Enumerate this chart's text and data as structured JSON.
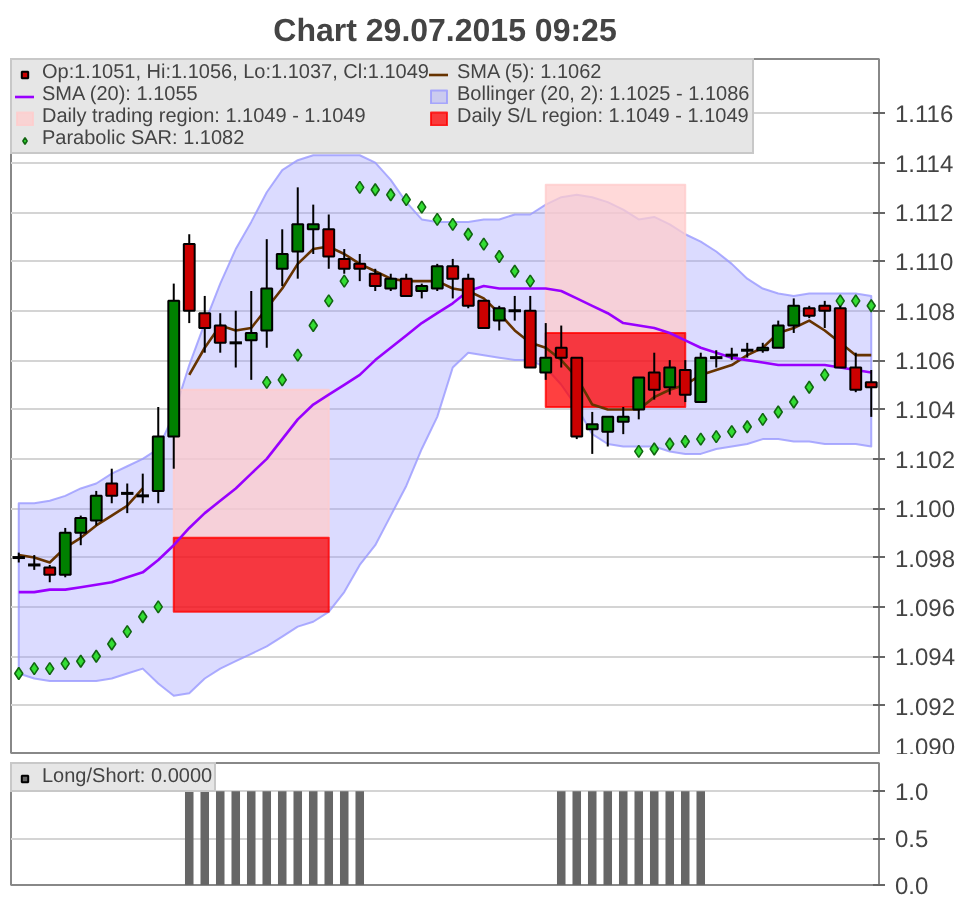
{
  "chart_data": [
    {
      "type": "candlestick",
      "title": "Chart 29.07.2015 09:25",
      "categories": [
        null,
        null,
        null,
        null,
        null,
        null,
        null,
        null,
        null,
        null,
        null,
        null,
        null,
        null,
        null,
        null,
        null,
        null,
        null,
        null,
        null,
        null,
        null,
        null,
        null,
        null,
        null,
        null,
        null,
        null,
        null,
        null,
        null,
        null,
        null,
        null,
        null,
        null,
        null,
        null,
        null,
        null,
        null,
        null,
        null,
        null,
        null,
        null,
        null,
        null,
        null,
        null,
        null,
        null,
        null,
        null
      ],
      "ylim": [
        1.09,
        1.1182
      ],
      "yticks": [
        {
          "value": 1.09,
          "label": "1.090"
        },
        {
          "value": 1.092,
          "label": "1.092"
        },
        {
          "value": 1.094,
          "label": "1.094"
        },
        {
          "value": 1.096,
          "label": "1.096"
        },
        {
          "value": 1.098,
          "label": "1.098"
        },
        {
          "value": 1.1,
          "label": "1.100"
        },
        {
          "value": 1.102,
          "label": "1.102"
        },
        {
          "value": 1.104,
          "label": "1.104"
        },
        {
          "value": 1.106,
          "label": "1.106"
        },
        {
          "value": 1.108,
          "label": "1.108"
        },
        {
          "value": 1.11,
          "label": "1.110"
        },
        {
          "value": 1.112,
          "label": "1.112"
        },
        {
          "value": 1.114,
          "label": "1.114"
        },
        {
          "value": 1.116,
          "label": "1.116"
        }
      ],
      "grid": "y",
      "legend": "top",
      "tick_labels": "y",
      "series": [
        {
          "type": "area",
          "name": "Bollinger (20, 2): 1.1025 - 1.1086",
          "color": "#9999ff",
          "values": [
            null,
            null,
            null,
            null,
            null,
            null,
            null,
            null,
            null,
            null,
            null,
            null,
            null,
            null,
            null,
            null,
            null,
            null,
            null,
            null,
            null,
            null,
            null,
            null,
            null,
            null,
            null,
            null,
            null,
            null,
            null,
            null,
            null,
            null,
            null,
            null,
            null,
            null,
            null,
            null,
            null,
            null,
            null,
            null,
            null,
            null,
            null,
            null,
            null,
            null,
            null,
            null,
            null,
            null,
            null,
            null
          ],
          "upper": [
            1.1002,
            1.1002,
            1.1003,
            1.1005,
            1.1008,
            1.101,
            1.1014,
            1.1017,
            1.102,
            1.1024,
            1.1038,
            1.1058,
            1.1075,
            1.1091,
            1.1105,
            1.1116,
            1.1128,
            1.1137,
            1.1141,
            1.1143,
            1.1143,
            1.1143,
            1.1143,
            1.114,
            1.1133,
            1.1124,
            1.1117,
            1.1116,
            1.1116,
            1.1116,
            1.1117,
            1.1117,
            1.1119,
            1.1119,
            1.1123,
            1.1126,
            1.1127,
            1.1126,
            1.1124,
            1.1121,
            1.1117,
            1.1118,
            1.1115,
            1.1111,
            1.1108,
            1.1104,
            1.1099,
            1.1093,
            1.1089,
            1.1087,
            1.1086,
            1.1087,
            1.1087,
            1.1087,
            1.1087,
            1.1086
          ],
          "lower": [
            1.0933,
            1.0931,
            1.093,
            1.093,
            1.093,
            1.093,
            1.0931,
            1.0933,
            1.0935,
            1.0929,
            1.0924,
            1.0925,
            1.0931,
            1.0935,
            1.0938,
            1.0941,
            1.0944,
            1.0948,
            1.0952,
            1.0954,
            1.0958,
            1.0966,
            1.0977,
            1.0985,
            1.0997,
            1.1009,
            1.1024,
            1.1037,
            1.1057,
            1.1063,
            1.1062,
            1.1061,
            1.106,
            1.106,
            1.1057,
            1.105,
            1.1041,
            1.103,
            1.1026,
            1.1025,
            1.1025,
            1.1025,
            1.1023,
            1.1022,
            1.1022,
            1.1024,
            1.1025,
            1.1026,
            1.1028,
            1.1028,
            1.1027,
            1.1027,
            1.1026,
            1.1026,
            1.1026,
            1.1025
          ]
        },
        {
          "type": "area",
          "name": "Daily trading region: 1.1049 - 1.1049",
          "color": "#ffcccc",
          "values": [
            null,
            null,
            null,
            null,
            null,
            null,
            null,
            null,
            null,
            null,
            null,
            null,
            null,
            null,
            null,
            null,
            null,
            null,
            null,
            null,
            null,
            null,
            null,
            null,
            null,
            null,
            null,
            null,
            null,
            null,
            null,
            null,
            null,
            null,
            null,
            null,
            null,
            null,
            null,
            null,
            null,
            null,
            null,
            null,
            null,
            null,
            null,
            null,
            null,
            null,
            null,
            null,
            null,
            null,
            null,
            null
          ],
          "upper": [
            null,
            null,
            null,
            null,
            null,
            null,
            null,
            null,
            null,
            null,
            1.1048,
            1.1048,
            1.1048,
            1.1048,
            1.1048,
            1.1048,
            1.1048,
            1.1048,
            1.1048,
            1.1048,
            1.1048,
            null,
            null,
            null,
            null,
            null,
            null,
            null,
            null,
            null,
            null,
            null,
            null,
            null,
            1.1131,
            1.1131,
            1.1131,
            1.1131,
            1.1131,
            1.1131,
            1.1131,
            1.1131,
            1.1131,
            1.1131,
            null,
            null,
            null,
            null,
            null,
            null,
            null,
            null,
            null,
            null,
            null,
            null
          ],
          "lower": [
            null,
            null,
            null,
            null,
            null,
            null,
            null,
            null,
            null,
            null,
            1.0988,
            1.0988,
            1.0988,
            1.0988,
            1.0988,
            1.0988,
            1.0988,
            1.0988,
            1.0988,
            1.0988,
            1.0988,
            null,
            null,
            null,
            null,
            null,
            null,
            null,
            null,
            null,
            null,
            null,
            null,
            null,
            1.1071,
            1.1071,
            1.1071,
            1.1071,
            1.1071,
            1.1071,
            1.1071,
            1.1071,
            1.1071,
            1.1071,
            null,
            null,
            null,
            null,
            null,
            null,
            null,
            null,
            null,
            null,
            null,
            null
          ]
        },
        {
          "type": "area",
          "name": "Daily S/L region: 1.1049 - 1.1049",
          "color": "#ff0000",
          "values": [
            null,
            null,
            null,
            null,
            null,
            null,
            null,
            null,
            null,
            null,
            null,
            null,
            null,
            null,
            null,
            null,
            null,
            null,
            null,
            null,
            null,
            null,
            null,
            null,
            null,
            null,
            null,
            null,
            null,
            null,
            null,
            null,
            null,
            null,
            null,
            null,
            null,
            null,
            null,
            null,
            null,
            null,
            null,
            null,
            null,
            null,
            null,
            null,
            null,
            null,
            null,
            null,
            null,
            null,
            null,
            null
          ],
          "upper": [
            null,
            null,
            null,
            null,
            null,
            null,
            null,
            null,
            null,
            null,
            1.0988,
            1.0988,
            1.0988,
            1.0988,
            1.0988,
            1.0988,
            1.0988,
            1.0988,
            1.0988,
            1.0988,
            1.0988,
            null,
            null,
            null,
            null,
            null,
            null,
            null,
            null,
            null,
            null,
            null,
            null,
            null,
            1.1071,
            1.1071,
            1.1071,
            1.1071,
            1.1071,
            1.1071,
            1.1071,
            1.1071,
            1.1071,
            1.1071,
            null,
            null,
            null,
            null,
            null,
            null,
            null,
            null,
            null,
            null,
            null,
            null
          ],
          "lower": [
            null,
            null,
            null,
            null,
            null,
            null,
            null,
            null,
            null,
            null,
            1.0958,
            1.0958,
            1.0958,
            1.0958,
            1.0958,
            1.0958,
            1.0958,
            1.0958,
            1.0958,
            1.0958,
            1.0958,
            null,
            null,
            null,
            null,
            null,
            null,
            null,
            null,
            null,
            null,
            null,
            null,
            null,
            1.1041,
            1.1041,
            1.1041,
            1.1041,
            1.1041,
            1.1041,
            1.1041,
            1.1041,
            1.1041,
            1.1041,
            null,
            null,
            null,
            null,
            null,
            null,
            null,
            null,
            null,
            null,
            null,
            null
          ]
        },
        {
          "type": "line",
          "name": "SMA (5): 1.1062",
          "color": "#663300",
          "values": [
            1.0981,
            1.098,
            1.0978,
            1.0984,
            1.0988,
            1.0993,
            1.0997,
            1.1001,
            1.1008,
            null,
            null,
            1.1054,
            1.1065,
            1.1074,
            1.1072,
            1.1073,
            1.1081,
            1.1089,
            1.1099,
            1.1105,
            1.1106,
            1.1103,
            1.1099,
            1.1096,
            1.1093,
            1.1092,
            1.1092,
            1.1092,
            1.1089,
            1.1088,
            1.1085,
            1.1079,
            1.1072,
            1.1067,
            1.1065,
            1.106,
            1.1053,
            1.1042,
            1.104,
            1.104,
            1.104,
            1.1045,
            1.1048,
            1.105,
            1.1054,
            1.1056,
            1.1058,
            1.1062,
            1.1065,
            1.1071,
            1.1073,
            1.1076,
            1.1072,
            1.1067,
            1.1062,
            1.1062
          ]
        },
        {
          "type": "line",
          "name": "SMA (20): 1.1055",
          "color": "#9900ff",
          "values": [
            1.0966,
            1.0966,
            1.0967,
            1.0967,
            1.0968,
            1.0969,
            1.097,
            1.0972,
            1.0974,
            1.0979,
            1.0985,
            1.0992,
            1.0998,
            1.1003,
            1.1008,
            1.1014,
            1.102,
            1.1028,
            1.1036,
            1.1042,
            1.1046,
            1.105,
            1.1054,
            1.106,
            1.1065,
            1.107,
            1.1075,
            1.1079,
            1.1083,
            1.1088,
            1.109,
            1.1089,
            1.1089,
            1.1089,
            1.1089,
            1.1088,
            1.1085,
            1.1082,
            1.1079,
            1.1075,
            1.1074,
            1.1073,
            1.1071,
            1.1068,
            1.1065,
            1.1063,
            1.1061,
            1.106,
            1.1059,
            1.1058,
            1.1058,
            1.1058,
            1.1058,
            1.1057,
            1.1056,
            1.1055
          ]
        },
        {
          "type": "scatter",
          "name": "Parabolic SAR: 1.1082",
          "color": "#33dd33",
          "marker": "diamond",
          "values": [
            1.0933,
            1.0935,
            1.0935,
            1.0937,
            1.0938,
            1.094,
            1.0945,
            1.095,
            1.0956,
            1.096,
            null,
            null,
            null,
            null,
            null,
            null,
            1.1051,
            1.1052,
            1.1062,
            1.1074,
            1.1084,
            1.1092,
            1.113,
            1.1129,
            1.1127,
            1.1125,
            1.1122,
            1.1117,
            1.1115,
            1.1111,
            1.1107,
            1.1102,
            1.1096,
            1.1092,
            null,
            null,
            null,
            null,
            null,
            null,
            1.1023,
            1.1024,
            1.1026,
            1.1027,
            1.1028,
            1.1029,
            1.1031,
            1.1033,
            1.1036,
            1.1039,
            1.1043,
            1.1049,
            1.1054,
            1.1084,
            1.1084,
            1.1082
          ]
        },
        {
          "type": "candlestick",
          "name": "Op:1.1051, Hi:1.1056, Lo:1.1037, Cl:1.1049",
          "color": "#cc0000",
          "ohlc": [
            [
              1.098,
              1.0982,
              1.0978,
              1.098
            ],
            [
              1.0977,
              1.0981,
              1.0975,
              1.0977
            ],
            [
              1.0976,
              1.0977,
              1.097,
              1.0973
            ],
            [
              1.0973,
              1.0992,
              1.0972,
              1.099
            ],
            [
              1.099,
              1.0997,
              1.0985,
              1.0996
            ],
            [
              1.0995,
              1.1007,
              1.0993,
              1.1005
            ],
            [
              1.101,
              1.1016,
              1.1002,
              1.1005
            ],
            [
              1.1006,
              1.101,
              1.0998,
              1.1006
            ],
            [
              1.1005,
              1.1014,
              1.1002,
              1.1005
            ],
            [
              1.1007,
              1.1041,
              1.1002,
              1.1029
            ],
            [
              1.1029,
              1.1091,
              1.1016,
              1.1084
            ],
            [
              1.1107,
              1.1111,
              1.1075,
              1.108
            ],
            [
              1.1079,
              1.1086,
              1.1063,
              1.1073
            ],
            [
              1.1074,
              1.1079,
              1.1063,
              1.1067
            ],
            [
              1.1067,
              1.108,
              1.1057,
              1.1067
            ],
            [
              1.1068,
              1.1088,
              1.1052,
              1.1071
            ],
            [
              1.1072,
              1.1109,
              1.1065,
              1.1089
            ],
            [
              1.1097,
              1.1113,
              1.109,
              1.1103
            ],
            [
              1.1104,
              1.113,
              1.1093,
              1.1115
            ],
            [
              1.1113,
              1.1123,
              1.1103,
              1.1115
            ],
            [
              1.1113,
              1.1119,
              1.1097,
              1.1102
            ],
            [
              1.1101,
              1.1105,
              1.1095,
              1.1097
            ],
            [
              1.1099,
              1.1103,
              1.1092,
              1.1097
            ],
            [
              1.1095,
              1.1097,
              1.1088,
              1.109
            ],
            [
              1.1089,
              1.1095,
              1.1088,
              1.1093
            ],
            [
              1.1093,
              1.1095,
              1.1086,
              1.1086
            ],
            [
              1.1088,
              1.1091,
              1.1085,
              1.109
            ],
            [
              1.1089,
              1.1099,
              1.1088,
              1.1098
            ],
            [
              1.1098,
              1.1101,
              1.1085,
              1.1093
            ],
            [
              1.1093,
              1.1095,
              1.1081,
              1.1082
            ],
            [
              1.1084,
              1.1084,
              1.1073,
              1.1073
            ],
            [
              1.1076,
              1.1082,
              1.1072,
              1.1081
            ],
            [
              1.108,
              1.1086,
              1.1076,
              1.108
            ],
            [
              1.108,
              1.1086,
              1.1057,
              1.1057
            ],
            [
              1.1055,
              1.1075,
              1.1052,
              1.1061
            ],
            [
              1.1065,
              1.1074,
              1.1057,
              1.1061
            ],
            [
              1.1061,
              1.1061,
              1.1028,
              1.1029
            ],
            [
              1.1032,
              1.1039,
              1.1022,
              1.1034
            ],
            [
              1.1031,
              1.1037,
              1.1025,
              1.1037
            ],
            [
              1.1035,
              1.1041,
              1.103,
              1.1037
            ],
            [
              1.104,
              1.1053,
              1.1036,
              1.1053
            ],
            [
              1.1055,
              1.1063,
              1.1044,
              1.1048
            ],
            [
              1.1049,
              1.106,
              1.1046,
              1.1057
            ],
            [
              1.1056,
              1.106,
              1.1043,
              1.1046
            ],
            [
              1.1043,
              1.1063,
              1.1043,
              1.1061
            ],
            [
              1.1061,
              1.1064,
              1.1057,
              1.1061
            ],
            [
              1.1062,
              1.1065,
              1.106,
              1.1062
            ],
            [
              1.1064,
              1.1067,
              1.1061,
              1.1064
            ],
            [
              1.1064,
              1.1067,
              1.1063,
              1.1065
            ],
            [
              1.1065,
              1.1076,
              1.1065,
              1.1074
            ],
            [
              1.1074,
              1.1085,
              1.1071,
              1.1082
            ],
            [
              1.1081,
              1.1082,
              1.1077,
              1.1078
            ],
            [
              1.1082,
              1.1084,
              1.1073,
              1.108
            ],
            [
              1.1081,
              1.1082,
              1.1057,
              1.1057
            ],
            [
              1.1057,
              1.1063,
              1.1047,
              1.1048
            ],
            [
              1.1051,
              1.1056,
              1.1037,
              1.1049
            ]
          ],
          "colors": [
            "#000000",
            "#000000",
            "#cc0000",
            "#008000",
            "#008000",
            "#008000",
            "#cc0000",
            "#000000",
            "#000000",
            "#008000",
            "#008000",
            "#cc0000",
            "#cc0000",
            "#cc0000",
            "#000000",
            "#008000",
            "#008000",
            "#008000",
            "#008000",
            "#008000",
            "#cc0000",
            "#cc0000",
            "#cc0000",
            "#cc0000",
            "#008000",
            "#cc0000",
            "#008000",
            "#008000",
            "#cc0000",
            "#cc0000",
            "#cc0000",
            "#008000",
            "#000000",
            "#cc0000",
            "#008000",
            "#cc0000",
            "#cc0000",
            "#008000",
            "#008000",
            "#008000",
            "#008000",
            "#cc0000",
            "#008000",
            "#cc0000",
            "#008000",
            "#000000",
            "#000000",
            "#000000",
            "#008000",
            "#008000",
            "#008000",
            "#cc0000",
            "#cc0000",
            "#cc0000",
            "#cc0000",
            "#cc0000"
          ]
        }
      ]
    },
    {
      "type": "bar",
      "categories": [
        null,
        null,
        null,
        null,
        null,
        null,
        null,
        null,
        null,
        null,
        null,
        null,
        null,
        null,
        null,
        null,
        null,
        null,
        null,
        null,
        null,
        null,
        null,
        null,
        null,
        null,
        null,
        null,
        null,
        null,
        null,
        null,
        null,
        null,
        null,
        null,
        null,
        null,
        null,
        null,
        null,
        null,
        null,
        null,
        null,
        null,
        null,
        null,
        null,
        null,
        null,
        null,
        null,
        null,
        null,
        null
      ],
      "ylim": [
        0,
        1.3
      ],
      "yticks": [
        {
          "value": 0,
          "label": "0.0"
        },
        {
          "value": 0.5,
          "label": "0.5"
        },
        {
          "value": 1,
          "label": "1.0"
        }
      ],
      "grid": "y",
      "legend": "top",
      "tick_labels": "y",
      "series": [
        {
          "name": "Long/Short: 0.0000",
          "color": "#666666",
          "values": [
            0,
            0,
            0,
            0,
            0,
            0,
            0,
            0,
            0,
            0,
            0,
            1,
            1,
            1,
            1,
            1,
            1,
            1,
            1,
            1,
            1,
            1,
            1,
            0,
            0,
            0,
            0,
            0,
            0,
            0,
            0,
            0,
            0,
            0,
            0,
            1,
            1,
            1,
            1,
            1,
            1,
            1,
            1,
            1,
            1,
            0,
            0,
            0,
            0,
            0,
            0,
            0,
            0,
            0,
            0,
            0
          ]
        }
      ]
    }
  ]
}
